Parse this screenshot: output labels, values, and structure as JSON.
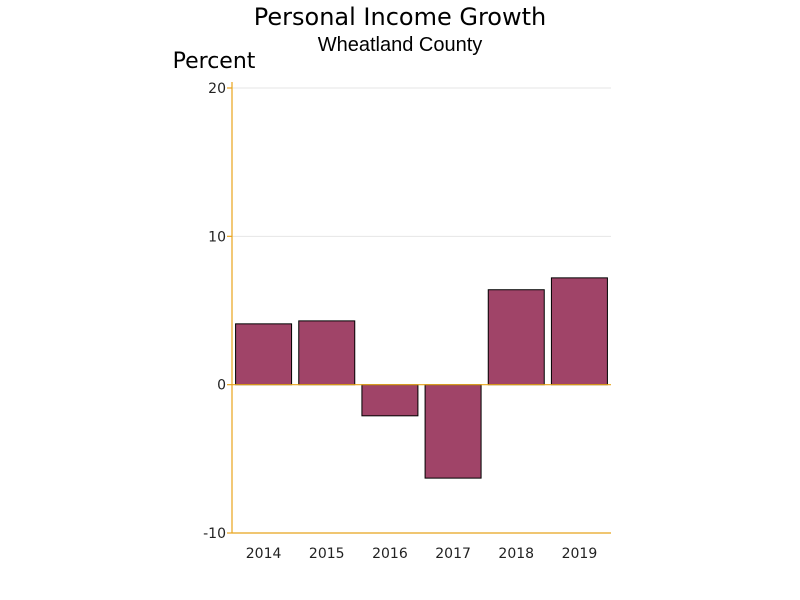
{
  "chart_data": {
    "type": "bar",
    "title": "Personal Income Growth",
    "subtitle": "Wheatland County",
    "ylabel": "Percent",
    "xlabel": "",
    "categories": [
      "2014",
      "2015",
      "2016",
      "2017",
      "2018",
      "2019"
    ],
    "values": [
      4.1,
      4.3,
      -2.1,
      -6.3,
      6.4,
      7.2
    ],
    "ylim": [
      -10,
      20
    ],
    "yticks": [
      -10,
      0,
      10,
      20
    ],
    "grid": true,
    "legend": "none",
    "colors": {
      "bar": "#a04468",
      "bar_outline": "#000000",
      "axis": "#e8a41c",
      "grid": "#e6e6e6"
    }
  }
}
